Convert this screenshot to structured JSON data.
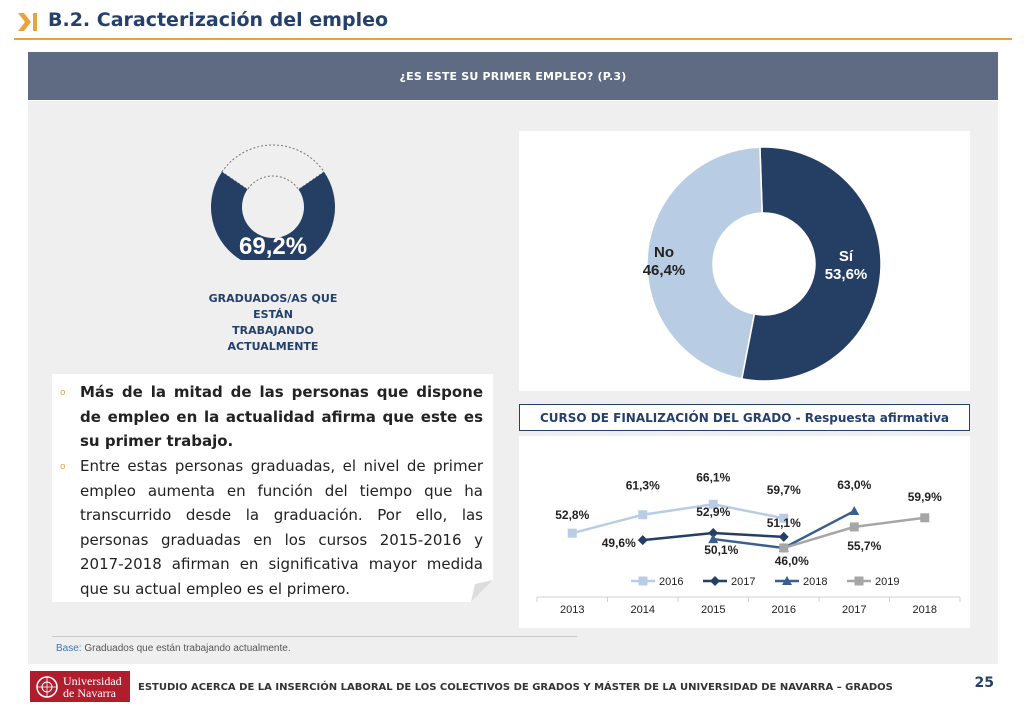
{
  "header": {
    "title": "B.2. Caracterización del empleo"
  },
  "question": "¿ES ESTE SU PRIMER EMPLEO? (P.3)",
  "working": {
    "value": "69,2%",
    "fraction": 0.692,
    "label_lines": [
      "GRADUADOS/AS QUE ESTÁN",
      "TRABAJANDO",
      "ACTUALMENTE"
    ]
  },
  "findings": {
    "p1": "Más de la mitad de las personas que dispone de empleo en la actualidad afirma que este es su primer trabajo.",
    "p2": "Entre estas personas graduadas, el nivel de primer empleo aumenta en función del tiempo que ha transcurrido desde la graduación. Por ello, las personas graduadas en los cursos 2015-2016 y 2017-2018 afirman en significativa mayor medida que su actual empleo es el primero."
  },
  "line_chart_title": "CURSO DE FINALIZACIÓN DEL GRADO - Respuesta afirmativa",
  "chart_data": [
    {
      "type": "pie",
      "slices": [
        {
          "label": "Sí",
          "value": 53.6,
          "value_label": "53,6%",
          "color": "#243f63"
        },
        {
          "label": "No",
          "value": 46.4,
          "value_label": "46,4%",
          "color": "#b8cde4"
        }
      ]
    },
    {
      "type": "line",
      "title": "CURSO DE FINALIZACIÓN DEL GRADO - Respuesta afirmativa",
      "categories": [
        "2013",
        "2014",
        "2015",
        "2016",
        "2017",
        "2018"
      ],
      "ylim": [
        40,
        75
      ],
      "legend": "bottom",
      "series": [
        {
          "name": "2016",
          "color": "#b8cde4",
          "marker": "square",
          "values": [
            52.8,
            61.3,
            66.1,
            59.7,
            null,
            null
          ],
          "labels": [
            "52,8%",
            "61,3%",
            "66,1%",
            "59,7%",
            null,
            null
          ]
        },
        {
          "name": "2017",
          "color": "#243f63",
          "marker": "diamond",
          "values": [
            null,
            49.6,
            52.9,
            51.1,
            null,
            null
          ],
          "labels": [
            null,
            "49,6%",
            "52,9%",
            "51,1%",
            null,
            null
          ]
        },
        {
          "name": "2018",
          "color": "#3a5f8f",
          "marker": "triangle",
          "values": [
            null,
            null,
            50.1,
            46.0,
            63.0,
            null
          ],
          "labels": [
            null,
            null,
            "50,1%",
            "46,0%",
            "63,0%",
            null
          ]
        },
        {
          "name": "2019",
          "color": "#a6a6a6",
          "marker": "square",
          "values": [
            null,
            null,
            null,
            46.0,
            55.7,
            59.9
          ],
          "labels": [
            null,
            null,
            null,
            null,
            "55,7%",
            "59,9%"
          ]
        }
      ]
    }
  ],
  "base": {
    "key": "Base:",
    "text": "Graduados que están trabajando actualmente."
  },
  "footer": {
    "logo_lines": [
      "Universidad",
      "de Navarra"
    ],
    "text": "ESTUDIO ACERCA DE LA INSERCIÓN LABORAL DE LOS COLECTIVOS DE GRADOS Y MÁSTER DE LA UNIVERSIDAD DE NAVARRA – GRADOS",
    "page": "25"
  }
}
